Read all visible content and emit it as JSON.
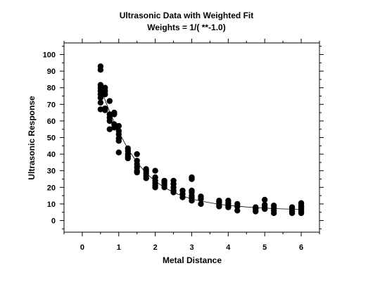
{
  "chart_data": {
    "type": "scatter",
    "title": "Ultrasonic Data with Weighted Fit",
    "subtitle": "Weights = 1/( **-1.0)",
    "xlabel": "Metal Distance",
    "ylabel": "Ultrasonic Response",
    "xlim": [
      -0.5,
      6.5
    ],
    "ylim": [
      -7,
      107
    ],
    "xticks": [
      0,
      1,
      2,
      3,
      4,
      5,
      6
    ],
    "yticks": [
      0,
      10,
      20,
      30,
      40,
      50,
      60,
      70,
      80,
      90,
      100
    ],
    "grid": false,
    "legend": "none",
    "marker_color": "#000000",
    "fit_line": {
      "label": "",
      "x": [
        0.5,
        0.625,
        0.75,
        0.875,
        1.0,
        1.25,
        1.5,
        1.75,
        2.0,
        2.25,
        2.5,
        2.75,
        3.0,
        3.25,
        3.75,
        4.0,
        4.25,
        4.75,
        5.0,
        5.25,
        5.75,
        6.0
      ],
      "y": [
        80.2,
        72.6,
        65.6,
        59.2,
        53.3,
        43.2,
        35.0,
        28.6,
        23.7,
        19.9,
        17.0,
        14.8,
        13.0,
        11.7,
        9.8,
        9.2,
        8.6,
        7.8,
        7.5,
        7.2,
        6.8,
        6.6
      ]
    },
    "points": [
      {
        "x": 0.5,
        "y": 92.9
      },
      {
        "x": 0.5,
        "y": 90.8
      },
      {
        "x": 0.5,
        "y": 81.7
      },
      {
        "x": 0.5,
        "y": 80.0
      },
      {
        "x": 0.5,
        "y": 78.1
      },
      {
        "x": 0.5,
        "y": 76.0
      },
      {
        "x": 0.5,
        "y": 74.0
      },
      {
        "x": 0.5,
        "y": 71.0
      },
      {
        "x": 0.5,
        "y": 67.0
      },
      {
        "x": 0.625,
        "y": 80.0
      },
      {
        "x": 0.625,
        "y": 78.0
      },
      {
        "x": 0.625,
        "y": 76.0
      },
      {
        "x": 0.625,
        "y": 67.5
      },
      {
        "x": 0.625,
        "y": 66.5
      },
      {
        "x": 0.75,
        "y": 72.0
      },
      {
        "x": 0.75,
        "y": 64.0
      },
      {
        "x": 0.75,
        "y": 62.0
      },
      {
        "x": 0.75,
        "y": 60.0
      },
      {
        "x": 0.75,
        "y": 55.0
      },
      {
        "x": 0.875,
        "y": 65.0
      },
      {
        "x": 0.875,
        "y": 64.0
      },
      {
        "x": 0.875,
        "y": 58.0
      },
      {
        "x": 0.875,
        "y": 56.0
      },
      {
        "x": 1.0,
        "y": 57.0
      },
      {
        "x": 1.0,
        "y": 54.0
      },
      {
        "x": 1.0,
        "y": 52.0
      },
      {
        "x": 1.0,
        "y": 49.5
      },
      {
        "x": 1.0,
        "y": 48.0
      },
      {
        "x": 1.0,
        "y": 41.0
      },
      {
        "x": 1.25,
        "y": 43.5
      },
      {
        "x": 1.25,
        "y": 42.0
      },
      {
        "x": 1.25,
        "y": 40.0
      },
      {
        "x": 1.25,
        "y": 38.5
      },
      {
        "x": 1.25,
        "y": 37.5
      },
      {
        "x": 1.5,
        "y": 40.0
      },
      {
        "x": 1.5,
        "y": 36.0
      },
      {
        "x": 1.5,
        "y": 34.0
      },
      {
        "x": 1.5,
        "y": 32.0
      },
      {
        "x": 1.5,
        "y": 30.0
      },
      {
        "x": 1.5,
        "y": 29.0
      },
      {
        "x": 1.75,
        "y": 31.0
      },
      {
        "x": 1.75,
        "y": 30.0
      },
      {
        "x": 1.75,
        "y": 28.5
      },
      {
        "x": 1.75,
        "y": 27.0
      },
      {
        "x": 1.75,
        "y": 25.5
      },
      {
        "x": 2.0,
        "y": 30.0
      },
      {
        "x": 2.0,
        "y": 26.0
      },
      {
        "x": 2.0,
        "y": 24.0
      },
      {
        "x": 2.0,
        "y": 22.5
      },
      {
        "x": 2.0,
        "y": 21.0
      },
      {
        "x": 2.0,
        "y": 20.0
      },
      {
        "x": 2.25,
        "y": 24.0
      },
      {
        "x": 2.25,
        "y": 23.0
      },
      {
        "x": 2.25,
        "y": 21.5
      },
      {
        "x": 2.25,
        "y": 20.0
      },
      {
        "x": 2.5,
        "y": 24.0
      },
      {
        "x": 2.5,
        "y": 22.0
      },
      {
        "x": 2.5,
        "y": 20.0
      },
      {
        "x": 2.5,
        "y": 18.0
      },
      {
        "x": 2.5,
        "y": 17.0
      },
      {
        "x": 2.75,
        "y": 18.0
      },
      {
        "x": 2.75,
        "y": 16.0
      },
      {
        "x": 2.75,
        "y": 14.0
      },
      {
        "x": 3.0,
        "y": 26.0
      },
      {
        "x": 3.0,
        "y": 25.0
      },
      {
        "x": 3.0,
        "y": 18.0
      },
      {
        "x": 3.0,
        "y": 17.0
      },
      {
        "x": 3.0,
        "y": 15.0
      },
      {
        "x": 3.0,
        "y": 13.5
      },
      {
        "x": 3.0,
        "y": 12.0
      },
      {
        "x": 3.25,
        "y": 14.5
      },
      {
        "x": 3.25,
        "y": 13.0
      },
      {
        "x": 3.25,
        "y": 10.0
      },
      {
        "x": 3.75,
        "y": 12.0
      },
      {
        "x": 3.75,
        "y": 11.0
      },
      {
        "x": 3.75,
        "y": 9.5
      },
      {
        "x": 3.75,
        "y": 8.5
      },
      {
        "x": 4.0,
        "y": 12.0
      },
      {
        "x": 4.0,
        "y": 10.5
      },
      {
        "x": 4.0,
        "y": 9.0
      },
      {
        "x": 4.0,
        "y": 8.0
      },
      {
        "x": 4.25,
        "y": 10.0
      },
      {
        "x": 4.25,
        "y": 8.5
      },
      {
        "x": 4.25,
        "y": 6.0
      },
      {
        "x": 4.75,
        "y": 8.0
      },
      {
        "x": 4.75,
        "y": 7.0
      },
      {
        "x": 4.75,
        "y": 5.5
      },
      {
        "x": 5.0,
        "y": 12.5
      },
      {
        "x": 5.0,
        "y": 9.5
      },
      {
        "x": 5.0,
        "y": 8.0
      },
      {
        "x": 5.0,
        "y": 7.0
      },
      {
        "x": 5.25,
        "y": 9.0
      },
      {
        "x": 5.25,
        "y": 7.5
      },
      {
        "x": 5.25,
        "y": 6.0
      },
      {
        "x": 5.25,
        "y": 4.5
      },
      {
        "x": 5.75,
        "y": 8.0
      },
      {
        "x": 5.75,
        "y": 7.0
      },
      {
        "x": 5.75,
        "y": 5.5
      },
      {
        "x": 5.75,
        "y": 4.5
      },
      {
        "x": 6.0,
        "y": 10.5
      },
      {
        "x": 6.0,
        "y": 9.0
      },
      {
        "x": 6.0,
        "y": 8.0
      },
      {
        "x": 6.0,
        "y": 7.0
      },
      {
        "x": 6.0,
        "y": 5.5
      },
      {
        "x": 6.0,
        "y": 4.5
      }
    ]
  }
}
